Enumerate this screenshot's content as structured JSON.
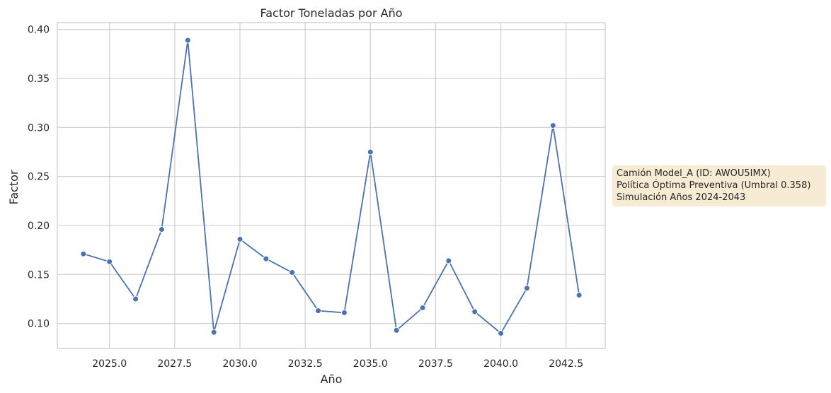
{
  "chart_data": {
    "type": "line",
    "title": "Factor Toneladas por Año",
    "xlabel": "Año",
    "ylabel": "Factor",
    "xlim": [
      2023.0,
      2044.0
    ],
    "ylim": [
      0.0745,
      0.407
    ],
    "xticks": [
      2025.0,
      2027.5,
      2030.0,
      2032.5,
      2035.0,
      2037.5,
      2040.0,
      2042.5
    ],
    "xtick_labels": [
      "2025.0",
      "2027.5",
      "2030.0",
      "2032.5",
      "2035.0",
      "2037.5",
      "2040.0",
      "2042.5"
    ],
    "yticks": [
      0.1,
      0.15,
      0.2,
      0.25,
      0.3,
      0.35,
      0.4
    ],
    "ytick_labels": [
      "0.10",
      "0.15",
      "0.20",
      "0.25",
      "0.30",
      "0.35",
      "0.40"
    ],
    "grid": true,
    "series": [
      {
        "color": "#4c72b0",
        "x": [
          2024,
          2025,
          2026,
          2027,
          2028,
          2029,
          2030,
          2031,
          2032,
          2033,
          2034,
          2035,
          2036,
          2037,
          2038,
          2039,
          2040,
          2041,
          2042,
          2043
        ],
        "y": [
          0.171,
          0.163,
          0.125,
          0.196,
          0.389,
          0.091,
          0.186,
          0.166,
          0.152,
          0.113,
          0.111,
          0.275,
          0.093,
          0.116,
          0.164,
          0.112,
          0.09,
          0.136,
          0.302,
          0.129
        ]
      }
    ]
  },
  "annotation": {
    "lines": [
      "Camión Model_A (ID: AWOU5IMX)",
      "Política Óptima Preventiva (Umbral 0.358)",
      "Simulación Años 2024-2043"
    ],
    "background": "#f8ebd3"
  },
  "colors": {
    "line": "#4c72b0",
    "grid": "#cccccc",
    "text": "#262626"
  }
}
